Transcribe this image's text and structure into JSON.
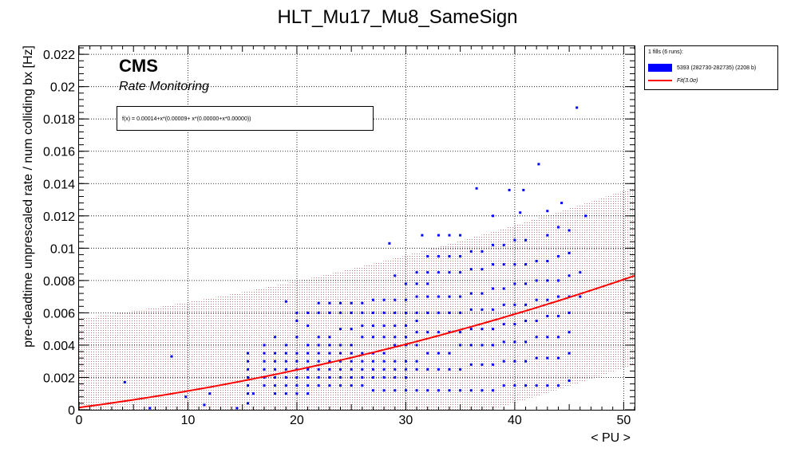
{
  "chart_data": {
    "type": "scatter",
    "title": "HLT_Mu17_Mu8_SameSign",
    "xlabel": "< PU >",
    "ylabel": "pre-deadtime unprescaled rate / num colliding bx [Hz]",
    "xlim": [
      0,
      51
    ],
    "ylim": [
      0,
      0.0225
    ],
    "xticks": [
      "0",
      "10",
      "20",
      "30",
      "40",
      "50"
    ],
    "yticks": [
      "0",
      "0.002",
      "0.004",
      "0.006",
      "0.008",
      "0.01",
      "0.012",
      "0.014",
      "0.016",
      "0.018",
      "0.02",
      "0.022"
    ],
    "grid": true,
    "legend_placement": "outside-top-right",
    "brand": "CMS",
    "subtitle": "Rate Monitoring",
    "fit_formula": "f(x) = 0.00014+x*(0.00009+ x*(0.00000+x*0.00000))",
    "fit": {
      "p0": 0.00014,
      "p1": 8.85e-05,
      "p2": 1.4e-06,
      "band_width": 0.0055,
      "x_range": [
        0,
        51
      ]
    },
    "legend": {
      "header": "1 fills (6 runs):",
      "entries": [
        {
          "label": "5393 (282730-282735) (2208 b)",
          "kind": "fill",
          "color": "#0000ff"
        },
        {
          "label": "Fit(3.0σ)",
          "kind": "line",
          "color": "#ff0000"
        }
      ]
    },
    "series": [
      {
        "name": "5393 (282730-282735) (2208 b)",
        "color": "#0000ff",
        "points": [
          [
            4.2,
            0.0017
          ],
          [
            6.5,
            0.0001
          ],
          [
            8.5,
            0.0033
          ],
          [
            9.8,
            0.0008
          ],
          [
            11.5,
            0.0003
          ],
          [
            12,
            0.001
          ],
          [
            14.5,
            0.0001
          ],
          [
            15.5,
            0.001
          ],
          [
            15.5,
            0.0015
          ],
          [
            15.5,
            0.002
          ],
          [
            15.5,
            0.0025
          ],
          [
            15.5,
            0.003
          ],
          [
            15.5,
            0.0035
          ],
          [
            15.5,
            0.0004
          ],
          [
            16,
            0.001
          ],
          [
            17,
            0.0015
          ],
          [
            17,
            0.002
          ],
          [
            17,
            0.0025
          ],
          [
            17,
            0.003
          ],
          [
            17,
            0.0035
          ],
          [
            17,
            0.004
          ],
          [
            18,
            0.001
          ],
          [
            18,
            0.0015
          ],
          [
            18,
            0.002
          ],
          [
            18,
            0.0025
          ],
          [
            18,
            0.003
          ],
          [
            18,
            0.0035
          ],
          [
            18,
            0.0045
          ],
          [
            19,
            0.001
          ],
          [
            19,
            0.0015
          ],
          [
            19,
            0.002
          ],
          [
            19,
            0.0025
          ],
          [
            19,
            0.003
          ],
          [
            19,
            0.0035
          ],
          [
            19,
            0.004
          ],
          [
            19,
            0.0067
          ],
          [
            20,
            0.001
          ],
          [
            20,
            0.0015
          ],
          [
            20,
            0.002
          ],
          [
            20,
            0.0025
          ],
          [
            20,
            0.003
          ],
          [
            20,
            0.0035
          ],
          [
            20,
            0.0045
          ],
          [
            20,
            0.0055
          ],
          [
            20,
            0.006
          ],
          [
            21,
            0.001
          ],
          [
            21,
            0.0015
          ],
          [
            21,
            0.002
          ],
          [
            21,
            0.0025
          ],
          [
            21,
            0.003
          ],
          [
            21,
            0.0035
          ],
          [
            21,
            0.004
          ],
          [
            21,
            0.0052
          ],
          [
            21,
            0.006
          ],
          [
            22,
            0.0015
          ],
          [
            22,
            0.002
          ],
          [
            22,
            0.0025
          ],
          [
            22,
            0.003
          ],
          [
            22,
            0.0035
          ],
          [
            22,
            0.004
          ],
          [
            22,
            0.0045
          ],
          [
            22,
            0.006
          ],
          [
            22,
            0.0066
          ],
          [
            23,
            0.0015
          ],
          [
            23,
            0.002
          ],
          [
            23,
            0.0025
          ],
          [
            23,
            0.003
          ],
          [
            23,
            0.0035
          ],
          [
            23,
            0.004
          ],
          [
            23,
            0.0045
          ],
          [
            23,
            0.006
          ],
          [
            23,
            0.0066
          ],
          [
            24,
            0.0015
          ],
          [
            24,
            0.002
          ],
          [
            24,
            0.0025
          ],
          [
            24,
            0.003
          ],
          [
            24,
            0.0035
          ],
          [
            24,
            0.004
          ],
          [
            24,
            0.005
          ],
          [
            24,
            0.006
          ],
          [
            24,
            0.0066
          ],
          [
            25,
            0.0015
          ],
          [
            25,
            0.002
          ],
          [
            25,
            0.0025
          ],
          [
            25,
            0.003
          ],
          [
            25,
            0.0035
          ],
          [
            25,
            0.004
          ],
          [
            25,
            0.005
          ],
          [
            25,
            0.006
          ],
          [
            25,
            0.0066
          ],
          [
            26,
            0.0015
          ],
          [
            26,
            0.002
          ],
          [
            26,
            0.0025
          ],
          [
            26,
            0.003
          ],
          [
            26,
            0.0035
          ],
          [
            26,
            0.0045
          ],
          [
            26,
            0.0052
          ],
          [
            26,
            0.006
          ],
          [
            26,
            0.0066
          ],
          [
            27,
            0.0012
          ],
          [
            27,
            0.002
          ],
          [
            27,
            0.0025
          ],
          [
            27,
            0.003
          ],
          [
            27,
            0.0035
          ],
          [
            27,
            0.0045
          ],
          [
            27,
            0.0052
          ],
          [
            27,
            0.006
          ],
          [
            27,
            0.0068
          ],
          [
            28,
            0.0012
          ],
          [
            28,
            0.002
          ],
          [
            28,
            0.0025
          ],
          [
            28,
            0.003
          ],
          [
            28,
            0.0035
          ],
          [
            28,
            0.0045
          ],
          [
            28,
            0.0052
          ],
          [
            28,
            0.006
          ],
          [
            28,
            0.0068
          ],
          [
            28.5,
            0.0103
          ],
          [
            29,
            0.0012
          ],
          [
            29,
            0.002
          ],
          [
            29,
            0.0025
          ],
          [
            29,
            0.003
          ],
          [
            29,
            0.004
          ],
          [
            29,
            0.0045
          ],
          [
            29,
            0.0052
          ],
          [
            29,
            0.006
          ],
          [
            29,
            0.0068
          ],
          [
            29,
            0.0083
          ],
          [
            30,
            0.0012
          ],
          [
            30,
            0.002
          ],
          [
            30,
            0.0025
          ],
          [
            30,
            0.003
          ],
          [
            30,
            0.004
          ],
          [
            30,
            0.0045
          ],
          [
            30,
            0.0052
          ],
          [
            30,
            0.006
          ],
          [
            30,
            0.0068
          ],
          [
            30,
            0.0078
          ],
          [
            31,
            0.0012
          ],
          [
            31,
            0.0025
          ],
          [
            31,
            0.003
          ],
          [
            31,
            0.004
          ],
          [
            31,
            0.0048
          ],
          [
            31,
            0.0055
          ],
          [
            31,
            0.006
          ],
          [
            31,
            0.007
          ],
          [
            31,
            0.0078
          ],
          [
            31,
            0.0085
          ],
          [
            32,
            0.0012
          ],
          [
            32,
            0.0025
          ],
          [
            32,
            0.0035
          ],
          [
            32,
            0.0048
          ],
          [
            32,
            0.006
          ],
          [
            32,
            0.007
          ],
          [
            32,
            0.0078
          ],
          [
            32,
            0.0085
          ],
          [
            32,
            0.0095
          ],
          [
            31.5,
            0.0108
          ],
          [
            33,
            0.0012
          ],
          [
            33,
            0.0025
          ],
          [
            33,
            0.0035
          ],
          [
            33,
            0.0048
          ],
          [
            33,
            0.006
          ],
          [
            33,
            0.007
          ],
          [
            33,
            0.0085
          ],
          [
            33,
            0.0095
          ],
          [
            33,
            0.0108
          ],
          [
            34,
            0.0012
          ],
          [
            34,
            0.0025
          ],
          [
            34,
            0.0035
          ],
          [
            34,
            0.0048
          ],
          [
            34,
            0.006
          ],
          [
            34,
            0.007
          ],
          [
            34,
            0.0085
          ],
          [
            34,
            0.0095
          ],
          [
            34,
            0.0108
          ],
          [
            35,
            0.0012
          ],
          [
            35,
            0.0025
          ],
          [
            35,
            0.004
          ],
          [
            35,
            0.0048
          ],
          [
            35,
            0.006
          ],
          [
            35,
            0.007
          ],
          [
            35,
            0.0085
          ],
          [
            35,
            0.0095
          ],
          [
            35,
            0.0108
          ],
          [
            36,
            0.0012
          ],
          [
            36,
            0.0028
          ],
          [
            36,
            0.004
          ],
          [
            36,
            0.005
          ],
          [
            36,
            0.0062
          ],
          [
            36,
            0.0072
          ],
          [
            36,
            0.0087
          ],
          [
            36,
            0.0098
          ],
          [
            36.5,
            0.0137
          ],
          [
            37,
            0.0012
          ],
          [
            37,
            0.0028
          ],
          [
            37,
            0.004
          ],
          [
            37,
            0.005
          ],
          [
            37,
            0.0062
          ],
          [
            37,
            0.0072
          ],
          [
            37,
            0.0087
          ],
          [
            37,
            0.0098
          ],
          [
            38,
            0.0012
          ],
          [
            38,
            0.0028
          ],
          [
            38,
            0.004
          ],
          [
            38,
            0.005
          ],
          [
            38,
            0.0062
          ],
          [
            38,
            0.0075
          ],
          [
            38,
            0.009
          ],
          [
            38,
            0.0102
          ],
          [
            38,
            0.012
          ],
          [
            39,
            0.0015
          ],
          [
            39,
            0.003
          ],
          [
            39,
            0.0042
          ],
          [
            39,
            0.0053
          ],
          [
            39,
            0.0065
          ],
          [
            39,
            0.0075
          ],
          [
            39,
            0.009
          ],
          [
            39,
            0.0102
          ],
          [
            39.5,
            0.0136
          ],
          [
            40,
            0.0015
          ],
          [
            40,
            0.003
          ],
          [
            40,
            0.0042
          ],
          [
            40,
            0.0053
          ],
          [
            40,
            0.0065
          ],
          [
            40,
            0.0078
          ],
          [
            40,
            0.009
          ],
          [
            40,
            0.0105
          ],
          [
            40.5,
            0.0122
          ],
          [
            40.8,
            0.0136
          ],
          [
            41,
            0.0015
          ],
          [
            41,
            0.003
          ],
          [
            41,
            0.0042
          ],
          [
            41,
            0.0055
          ],
          [
            41,
            0.0065
          ],
          [
            41,
            0.0078
          ],
          [
            41,
            0.009
          ],
          [
            41,
            0.0105
          ],
          [
            42,
            0.0015
          ],
          [
            42,
            0.0032
          ],
          [
            42,
            0.0045
          ],
          [
            42,
            0.0055
          ],
          [
            42,
            0.0068
          ],
          [
            42,
            0.008
          ],
          [
            42,
            0.0092
          ],
          [
            42.2,
            0.0152
          ],
          [
            43,
            0.0015
          ],
          [
            43,
            0.0032
          ],
          [
            43,
            0.0045
          ],
          [
            43,
            0.0058
          ],
          [
            43,
            0.0068
          ],
          [
            43,
            0.008
          ],
          [
            43,
            0.0092
          ],
          [
            43,
            0.0108
          ],
          [
            43,
            0.0123
          ],
          [
            44,
            0.0015
          ],
          [
            44,
            0.0032
          ],
          [
            44,
            0.0045
          ],
          [
            44,
            0.0058
          ],
          [
            44,
            0.007
          ],
          [
            44,
            0.008
          ],
          [
            44,
            0.0095
          ],
          [
            44,
            0.0113
          ],
          [
            44.3,
            0.0128
          ],
          [
            45,
            0.0018
          ],
          [
            45,
            0.0035
          ],
          [
            45,
            0.0048
          ],
          [
            45,
            0.006
          ],
          [
            45,
            0.007
          ],
          [
            45,
            0.0083
          ],
          [
            45,
            0.0097
          ],
          [
            45,
            0.0111
          ],
          [
            45.7,
            0.0187
          ],
          [
            46,
            0.007
          ],
          [
            46,
            0.0085
          ],
          [
            46.5,
            0.012
          ]
        ]
      }
    ]
  }
}
